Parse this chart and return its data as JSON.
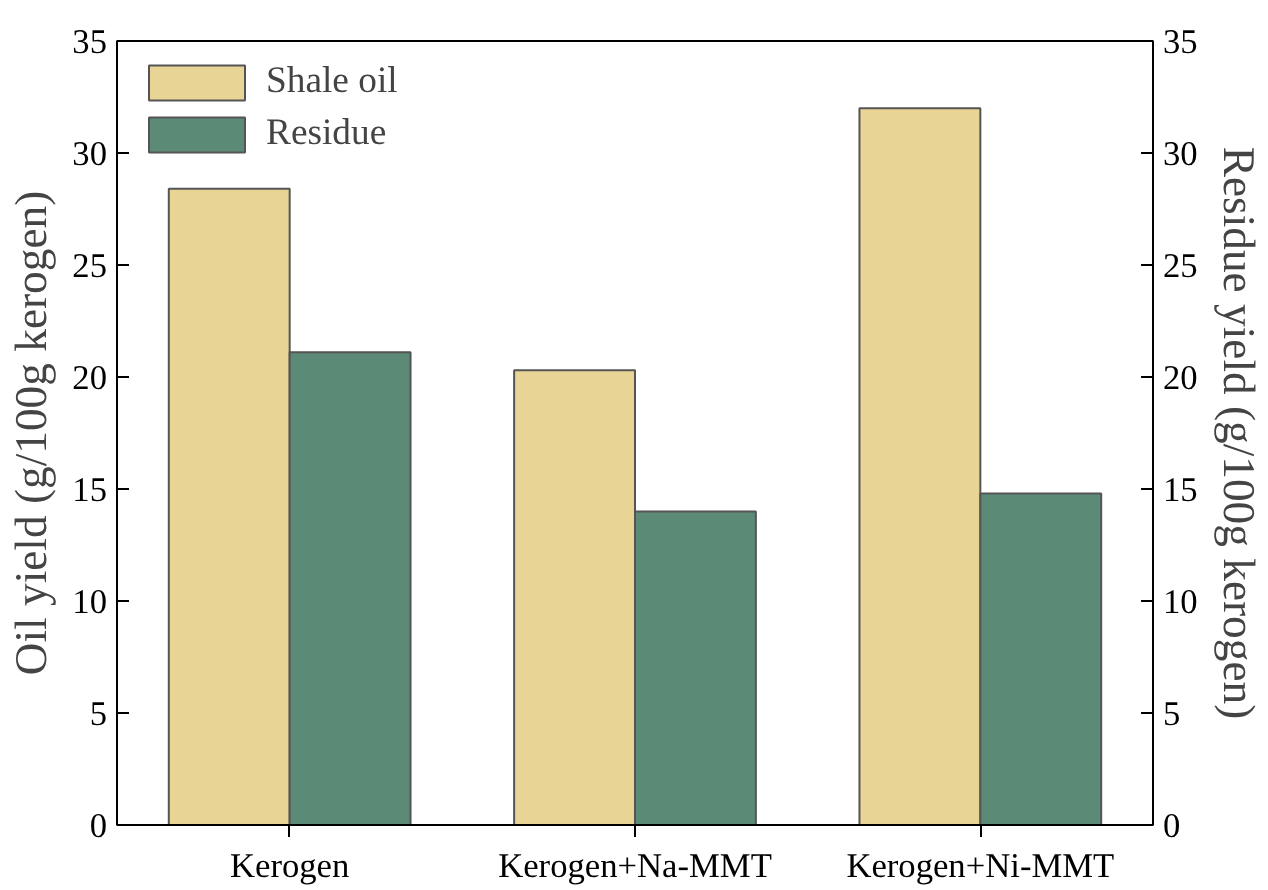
{
  "chart_data": {
    "type": "bar",
    "categories": [
      "Kerogen",
      "Kerogen+Na-MMT",
      "Kerogen+Ni-MMT"
    ],
    "series": [
      {
        "name": "Shale oil",
        "color": "#e8d596",
        "values": [
          28.4,
          20.3,
          32.0
        ]
      },
      {
        "name": "Residue",
        "color": "#5b8a77",
        "values": [
          21.1,
          14.0,
          14.8
        ]
      }
    ],
    "ylabel": "Oil yield (g/100g kerogen)",
    "y2label": "Residue yield (g/100g kerogen)",
    "ylim": [
      0,
      35
    ],
    "yticks": [
      0,
      5,
      10,
      15,
      20,
      25,
      30,
      35
    ],
    "y2lim": [
      0,
      35
    ],
    "y2ticks": [
      0,
      5,
      10,
      15,
      20,
      25,
      30,
      35
    ],
    "grid": false,
    "legend": "top left"
  }
}
